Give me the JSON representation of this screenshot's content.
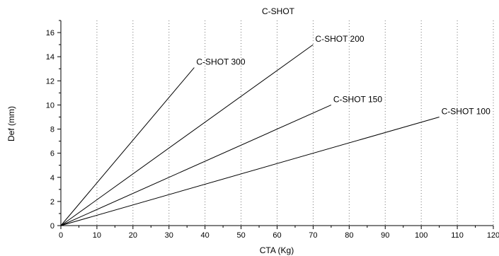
{
  "chart_data": {
    "type": "line",
    "title": "C-SHOT",
    "xlabel": "CTA (Kg)",
    "ylabel": "Def (mm)",
    "xlim": [
      0,
      120
    ],
    "ylim": [
      0,
      17
    ],
    "xticks": [
      0,
      10,
      20,
      30,
      40,
      50,
      60,
      70,
      80,
      90,
      100,
      110,
      120
    ],
    "yticks": [
      0,
      2,
      4,
      6,
      8,
      10,
      12,
      14,
      16
    ],
    "x_grid": "dotted",
    "y_grid": false,
    "legend": "none",
    "series": [
      {
        "name": "C-SHOT 300",
        "x": [
          0,
          37
        ],
        "y": [
          0,
          13.1
        ]
      },
      {
        "name": "C-SHOT 200",
        "x": [
          0,
          70
        ],
        "y": [
          0,
          15.0
        ]
      },
      {
        "name": "C-SHOT 150",
        "x": [
          0,
          75
        ],
        "y": [
          0,
          10.0
        ]
      },
      {
        "name": "C-SHOT 100",
        "x": [
          0,
          105
        ],
        "y": [
          0,
          9.0
        ]
      }
    ],
    "line_color": "#000000"
  }
}
